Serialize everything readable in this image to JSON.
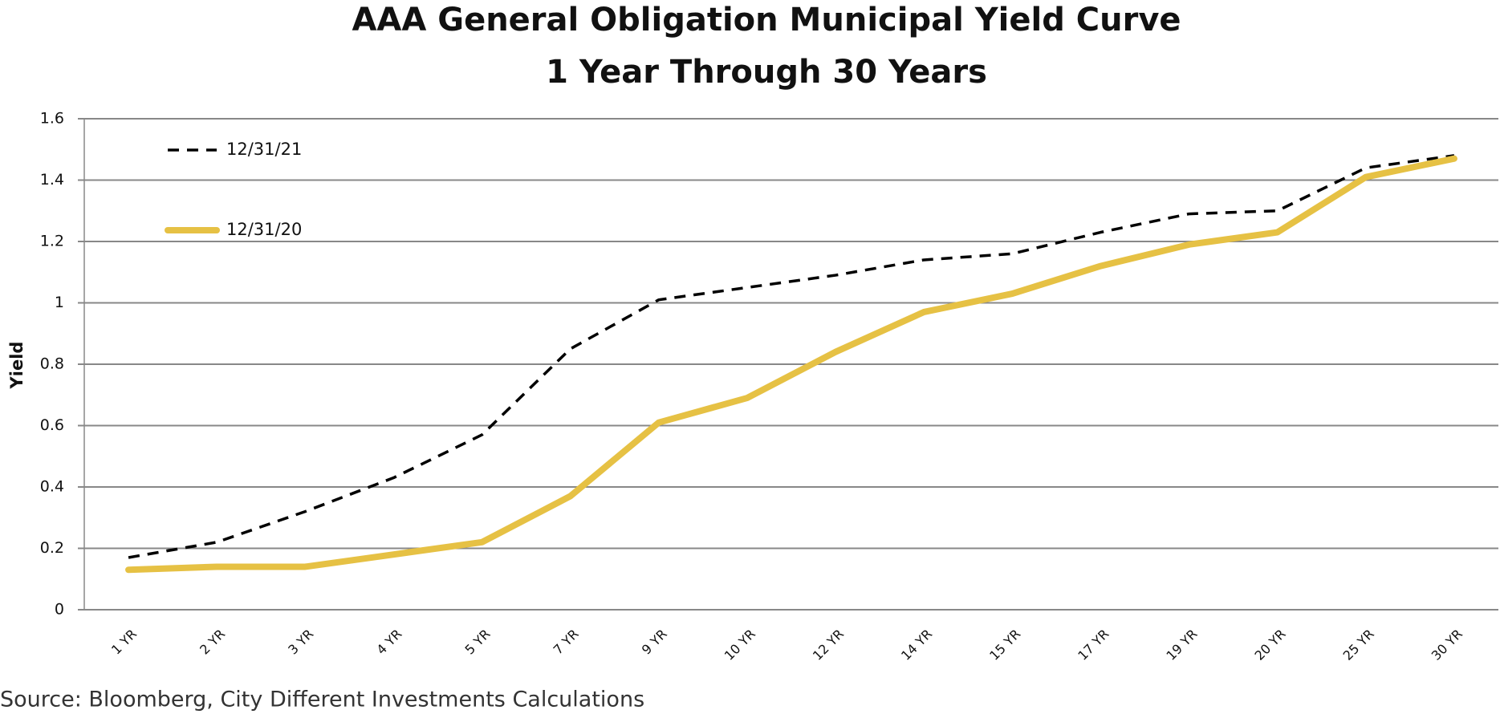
{
  "chart_data": {
    "type": "line",
    "title": "AAA General Obligation Municipal Yield Curve",
    "subtitle": "1 Year Through 30 Years",
    "y_label": "Yield",
    "source": "Source: Bloomberg, City Different Investments Calculations",
    "categories": [
      "1 YR",
      "2 YR",
      "3 YR",
      "4 YR",
      "5 YR",
      "7 YR",
      "9 YR",
      "10 YR",
      "12 YR",
      "14 YR",
      "15 YR",
      "17 YR",
      "19 YR",
      "20 YR",
      "25 YR",
      "30 YR"
    ],
    "series": [
      {
        "name": "12/31/21",
        "color": "#000000",
        "dashed": true,
        "values": [
          0.17,
          0.22,
          0.32,
          0.43,
          0.57,
          0.85,
          1.01,
          1.05,
          1.09,
          1.14,
          1.16,
          1.23,
          1.29,
          1.3,
          1.44,
          1.48
        ]
      },
      {
        "name": "12/31/20",
        "color": "#e6c144",
        "dashed": false,
        "values": [
          0.13,
          0.14,
          0.14,
          0.18,
          0.22,
          0.37,
          0.61,
          0.69,
          0.84,
          0.97,
          1.03,
          1.12,
          1.19,
          1.23,
          1.41,
          1.47
        ]
      }
    ],
    "ylim": [
      0,
      1.6
    ],
    "yticks": [
      0,
      0.2,
      0.4,
      0.6,
      0.8,
      1,
      1.2,
      1.4,
      1.6
    ],
    "grid": true
  }
}
